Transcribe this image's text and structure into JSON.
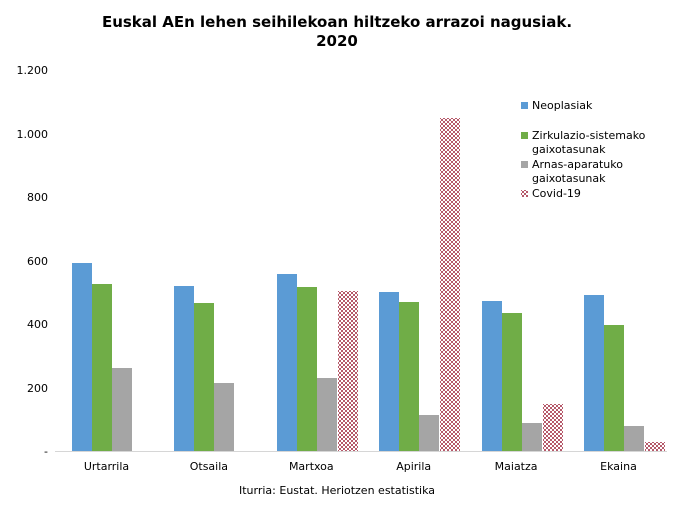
{
  "title": {
    "line1": "Euskal AEn lehen seihilekoan hiltzeko arrazoi nagusiak.",
    "line2": "2020"
  },
  "source": "Iturria: Eustat. Heriotzen estatistika",
  "chart_data": {
    "type": "bar",
    "title": "Euskal AEn lehen seihilekoan hiltzeko arrazoi nagusiak. 2020",
    "categories": [
      "Urtarrila",
      "Otsaila",
      "Martxoa",
      "Apirila",
      "Maiatza",
      "Ekaina"
    ],
    "series": [
      {
        "name": "Neoplasiak",
        "color": "#5b9bd5",
        "fill": "solid",
        "values": [
          591,
          521,
          557,
          500,
          472,
          490
        ]
      },
      {
        "name": "Zirkulazio-sistemako gaixotasunak",
        "color": "#70ad47",
        "fill": "solid",
        "values": [
          527,
          466,
          516,
          470,
          435,
          397
        ]
      },
      {
        "name": "Arnas-aparatuko gaixotasunak",
        "color": "#a5a5a5",
        "fill": "solid",
        "values": [
          261,
          214,
          230,
          113,
          88,
          80
        ]
      },
      {
        "name": "Covid-19",
        "color": "#9e2239",
        "fill": "dotted-pattern",
        "values": [
          0,
          0,
          503,
          1049,
          148,
          28
        ]
      }
    ],
    "xlabel": "",
    "ylabel": "",
    "ylim": [
      0,
      1200
    ],
    "y_ticks": [
      {
        "value": 1200,
        "label": "1.200"
      },
      {
        "value": 1000,
        "label": "1.000"
      },
      {
        "value": 800,
        "label": "800"
      },
      {
        "value": 600,
        "label": "600"
      },
      {
        "value": 400,
        "label": "400"
      },
      {
        "value": 200,
        "label": "200"
      },
      {
        "value": 0,
        "label": "-"
      }
    ],
    "grid": "off",
    "legend_position": "top-right",
    "axis_line_color": "#d6d6d6",
    "background": "#ffffff"
  }
}
